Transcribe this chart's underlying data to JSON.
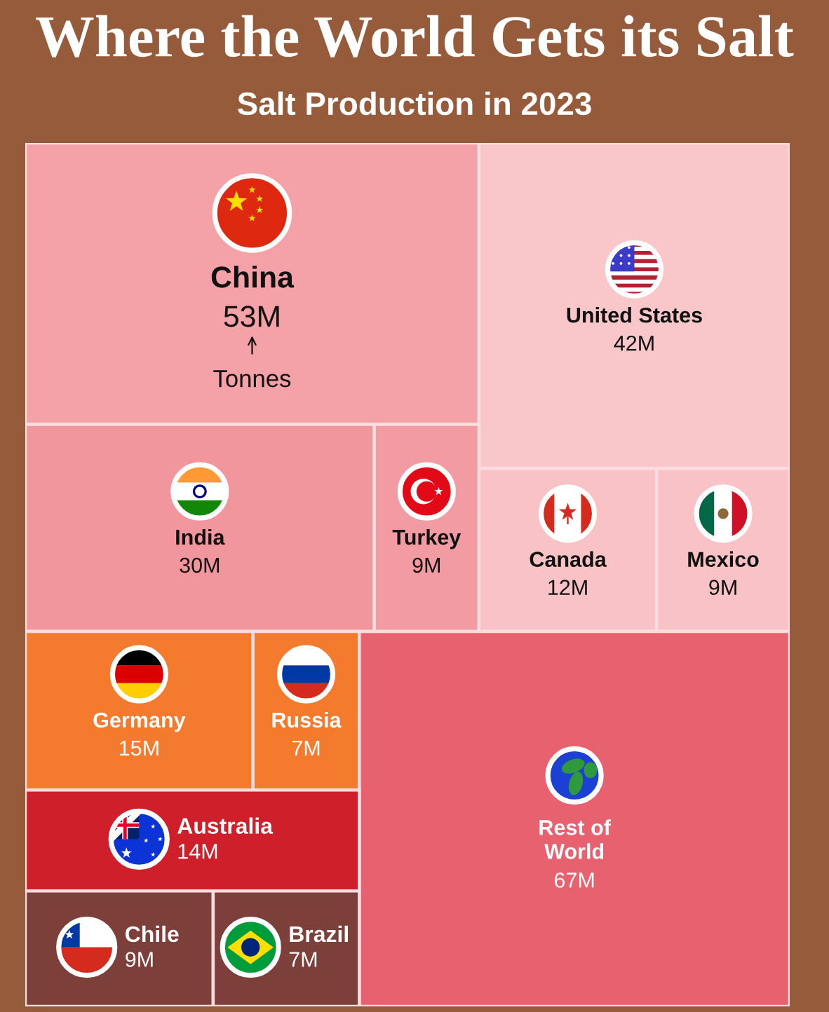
{
  "chart_data": {
    "type": "other",
    "title": "Where the World Gets its Salt",
    "subtitle": "Salt Production in 2023",
    "categories": [
      "China",
      "United States",
      "India",
      "Turkey",
      "Canada",
      "Mexico",
      "Germany",
      "Russia",
      "Rest of\nWorld",
      "Australia",
      "Chile",
      "Brazil"
    ],
    "values": [
      53,
      42,
      30,
      9,
      12,
      9,
      15,
      7,
      67,
      14,
      9,
      7
    ],
    "value_labels": [
      "53M",
      "42M",
      "30M",
      "9M",
      "12M",
      "9M",
      "15M",
      "7M",
      "67M",
      "14M",
      "9M",
      "7M"
    ],
    "colors": [
      "#f4a1a7",
      "#f9c6ca",
      "#f2969d",
      "#f39ba2",
      "#f8c2c6",
      "#f8c2c6",
      "#f47b2d",
      "#f47b2d",
      "#e8616f",
      "#cf1f2a",
      "#7d3f39",
      "#7d3f39"
    ],
    "annotations": [
      "Tonnes"
    ]
  }
}
